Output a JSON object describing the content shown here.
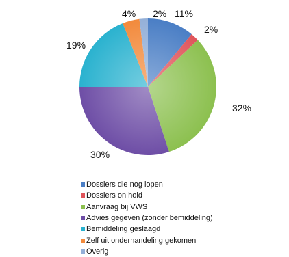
{
  "chart_data": {
    "type": "pie",
    "start_angle": "12 o'clock",
    "direction": "clockwise",
    "legend_position": "bottom",
    "slices": [
      {
        "label": "Dossiers die nog lopen",
        "value": 11,
        "display": "11%",
        "color": "#4a7ec5"
      },
      {
        "label": "Dossiers on hold",
        "value": 2,
        "display": "2%",
        "color": "#e0545a"
      },
      {
        "label": "Aanvraag bij VWS",
        "value": 32,
        "display": "32%",
        "color": "#8cc04f"
      },
      {
        "label": "Advies gegeven (zonder bemiddeling)",
        "value": 30,
        "display": "30%",
        "color": "#6e4ea6"
      },
      {
        "label": "Bemiddeling geslaagd",
        "value": 19,
        "display": "19%",
        "color": "#2ab2cf"
      },
      {
        "label": "Zelf uit onderhandeling gekomen",
        "value": 4,
        "display": "4%",
        "color": "#f28a3c"
      },
      {
        "label": "Overig",
        "value": 2,
        "display": "2%",
        "color": "#94b0d8"
      }
    ]
  }
}
